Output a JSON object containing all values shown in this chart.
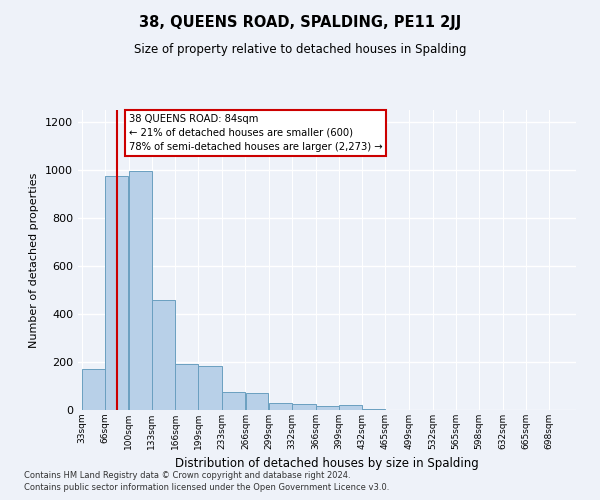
{
  "title": "38, QUEENS ROAD, SPALDING, PE11 2JJ",
  "subtitle": "Size of property relative to detached houses in Spalding",
  "xlabel": "Distribution of detached houses by size in Spalding",
  "ylabel": "Number of detached properties",
  "footer_line1": "Contains HM Land Registry data © Crown copyright and database right 2024.",
  "footer_line2": "Contains public sector information licensed under the Open Government Licence v3.0.",
  "property_size": 84,
  "annotation_title": "38 QUEENS ROAD: 84sqm",
  "annotation_line1": "← 21% of detached houses are smaller (600)",
  "annotation_line2": "78% of semi-detached houses are larger (2,273) →",
  "bin_labels": [
    "33sqm",
    "66sqm",
    "100sqm",
    "133sqm",
    "166sqm",
    "199sqm",
    "233sqm",
    "266sqm",
    "299sqm",
    "332sqm",
    "366sqm",
    "399sqm",
    "432sqm",
    "465sqm",
    "499sqm",
    "532sqm",
    "565sqm",
    "598sqm",
    "632sqm",
    "665sqm",
    "698sqm"
  ],
  "bin_edges": [
    33,
    66,
    100,
    133,
    166,
    199,
    233,
    266,
    299,
    332,
    366,
    399,
    432,
    465,
    499,
    532,
    565,
    598,
    632,
    665,
    698,
    731
  ],
  "bar_values": [
    170,
    975,
    995,
    460,
    190,
    185,
    75,
    70,
    30,
    25,
    15,
    20,
    5,
    0,
    0,
    0,
    0,
    0,
    0,
    0,
    0
  ],
  "bar_color": "#b8d0e8",
  "bar_edge_color": "#6a9fc0",
  "red_line_color": "#cc0000",
  "annotation_box_color": "#cc0000",
  "background_color": "#eef2f9",
  "ylim": [
    0,
    1250
  ],
  "yticks": [
    0,
    200,
    400,
    600,
    800,
    1000,
    1200
  ]
}
